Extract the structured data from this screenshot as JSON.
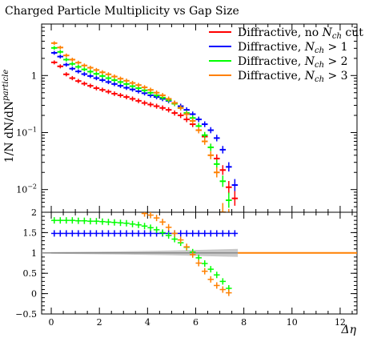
{
  "chart_data": {
    "type": "scatter",
    "title": "Charged Particle Multiplicity vs Gap Size",
    "ylabel": "1/N dN/dN^particle",
    "ylabel_parts": {
      "main": "1/N dN/dN",
      "sup": "particle"
    },
    "xlabel": "Δη",
    "x_bins": [
      0.125,
      0.375,
      0.625,
      0.875,
      1.125,
      1.375,
      1.625,
      1.875,
      2.125,
      2.375,
      2.625,
      2.875,
      3.125,
      3.375,
      3.625,
      3.875,
      4.125,
      4.375,
      4.625,
      4.875,
      5.125,
      5.375,
      5.625,
      5.875,
      6.125,
      6.375,
      6.625,
      6.875,
      7.125,
      7.375,
      7.625
    ],
    "series": [
      {
        "name": "Diffractive, no N_ch cut",
        "label_parts": [
          "Diffractive, no ",
          "N",
          "ch",
          " cut"
        ],
        "color": "#ff0000",
        "values": [
          1.7,
          1.45,
          1.05,
          0.9,
          0.8,
          0.72,
          0.66,
          0.6,
          0.56,
          0.52,
          0.48,
          0.45,
          0.42,
          0.39,
          0.36,
          0.33,
          0.31,
          0.29,
          0.27,
          0.25,
          0.22,
          0.2,
          0.17,
          0.14,
          0.11,
          0.085,
          0.055,
          0.035,
          0.022,
          0.011,
          0.007
        ]
      },
      {
        "name": "Diffractive, N_ch > 1",
        "label_parts": [
          "Diffractive, ",
          "N",
          "ch",
          " > 1"
        ],
        "color": "#0000ff",
        "values": [
          2.5,
          2.15,
          1.55,
          1.32,
          1.18,
          1.06,
          0.98,
          0.9,
          0.83,
          0.77,
          0.71,
          0.66,
          0.61,
          0.57,
          0.53,
          0.49,
          0.45,
          0.42,
          0.39,
          0.36,
          0.33,
          0.29,
          0.25,
          0.21,
          0.17,
          0.14,
          0.11,
          0.08,
          0.05,
          0.025,
          0.012
        ]
      },
      {
        "name": "Diffractive, N_ch > 2",
        "label_parts": [
          "Diffractive, ",
          "N",
          "ch",
          " > 2"
        ],
        "color": "#00ff00",
        "values": [
          3.05,
          2.6,
          1.9,
          1.6,
          1.42,
          1.28,
          1.17,
          1.07,
          0.98,
          0.9,
          0.83,
          0.77,
          0.71,
          0.65,
          0.6,
          0.55,
          0.5,
          0.45,
          0.41,
          0.37,
          0.32,
          0.27,
          0.22,
          0.18,
          0.13,
          0.09,
          0.055,
          0.028,
          0.014,
          0.0065,
          0.0
        ]
      },
      {
        "name": "Diffractive, N_ch > 3",
        "label_parts": [
          "Diffractive, ",
          "N",
          "ch",
          " > 3"
        ],
        "color": "#ff8000",
        "values": [
          3.7,
          3.1,
          2.25,
          1.9,
          1.68,
          1.5,
          1.37,
          1.25,
          1.14,
          1.05,
          0.96,
          0.88,
          0.81,
          0.74,
          0.68,
          0.62,
          0.56,
          0.5,
          0.45,
          0.39,
          0.33,
          0.27,
          0.21,
          0.16,
          0.11,
          0.07,
          0.04,
          0.02,
          0.004,
          0.003,
          0.0
        ]
      }
    ],
    "ratio": {
      "series": [
        {
          "color": "#0000ff",
          "values": [
            1.48,
            1.48,
            1.48,
            1.48,
            1.48,
            1.48,
            1.48,
            1.48,
            1.48,
            1.48,
            1.48,
            1.48,
            1.48,
            1.48,
            1.48,
            1.48,
            1.48,
            1.48,
            1.48,
            1.48,
            1.48,
            1.48,
            1.48,
            1.48,
            1.48,
            1.48,
            1.48,
            1.48,
            1.48,
            1.48,
            1.48
          ]
        },
        {
          "color": "#00ff00",
          "values": [
            1.8,
            1.8,
            1.8,
            1.8,
            1.79,
            1.79,
            1.78,
            1.78,
            1.77,
            1.76,
            1.75,
            1.74,
            1.73,
            1.71,
            1.69,
            1.66,
            1.62,
            1.57,
            1.5,
            1.43,
            1.34,
            1.25,
            1.14,
            1.02,
            0.88,
            0.74,
            0.6,
            0.46,
            0.3,
            0.13,
            null
          ]
        },
        {
          "color": "#ff8000",
          "values": [
            null,
            null,
            null,
            null,
            null,
            null,
            null,
            null,
            null,
            null,
            null,
            null,
            null,
            null,
            null,
            1.97,
            1.93,
            1.86,
            1.76,
            1.63,
            1.48,
            1.32,
            1.15,
            0.96,
            0.75,
            0.55,
            0.35,
            0.2,
            0.1,
            0.02,
            null
          ]
        }
      ],
      "reference": {
        "color": "#ff8000",
        "value": 1.0
      }
    },
    "xlim": [
      -0.4,
      12.7
    ],
    "ylim_main": [
      0.004,
      8
    ],
    "ylim_ratio": [
      -0.5,
      2
    ],
    "yscale_main": "log",
    "x_ticks": [
      0,
      2,
      4,
      6,
      8,
      10,
      12
    ],
    "y_ticks_main": [
      {
        "v": 1,
        "label": "1"
      },
      {
        "v": 0.1,
        "base": "10",
        "exp": "−1"
      },
      {
        "v": 0.01,
        "base": "10",
        "exp": "−2"
      }
    ],
    "y_ticks_ratio": [
      "2",
      "1.5",
      "1",
      "0.5",
      "0",
      "−0.5"
    ],
    "legend_position": "top-right",
    "grid": false
  }
}
